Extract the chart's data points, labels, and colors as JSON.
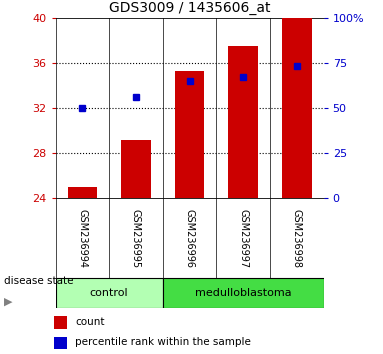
{
  "title": "GDS3009 / 1435606_at",
  "categories": [
    "GSM236994",
    "GSM236995",
    "GSM236996",
    "GSM236997",
    "GSM236998"
  ],
  "bar_values": [
    25.0,
    29.2,
    35.3,
    37.5,
    40.0
  ],
  "percentile_values": [
    50,
    56,
    65,
    67,
    73
  ],
  "ylim_left": [
    24,
    40
  ],
  "ylim_right": [
    0,
    100
  ],
  "yticks_left": [
    24,
    28,
    32,
    36,
    40
  ],
  "yticks_right": [
    0,
    25,
    50,
    75,
    100
  ],
  "bar_color": "#cc0000",
  "percentile_color": "#0000cc",
  "bar_bottom": 24,
  "ctrl_color": "#b3ffb3",
  "med_color": "#44dd44",
  "tick_area_color": "#cccccc",
  "group_separator": 1.5,
  "n_control": 2,
  "n_med": 3
}
